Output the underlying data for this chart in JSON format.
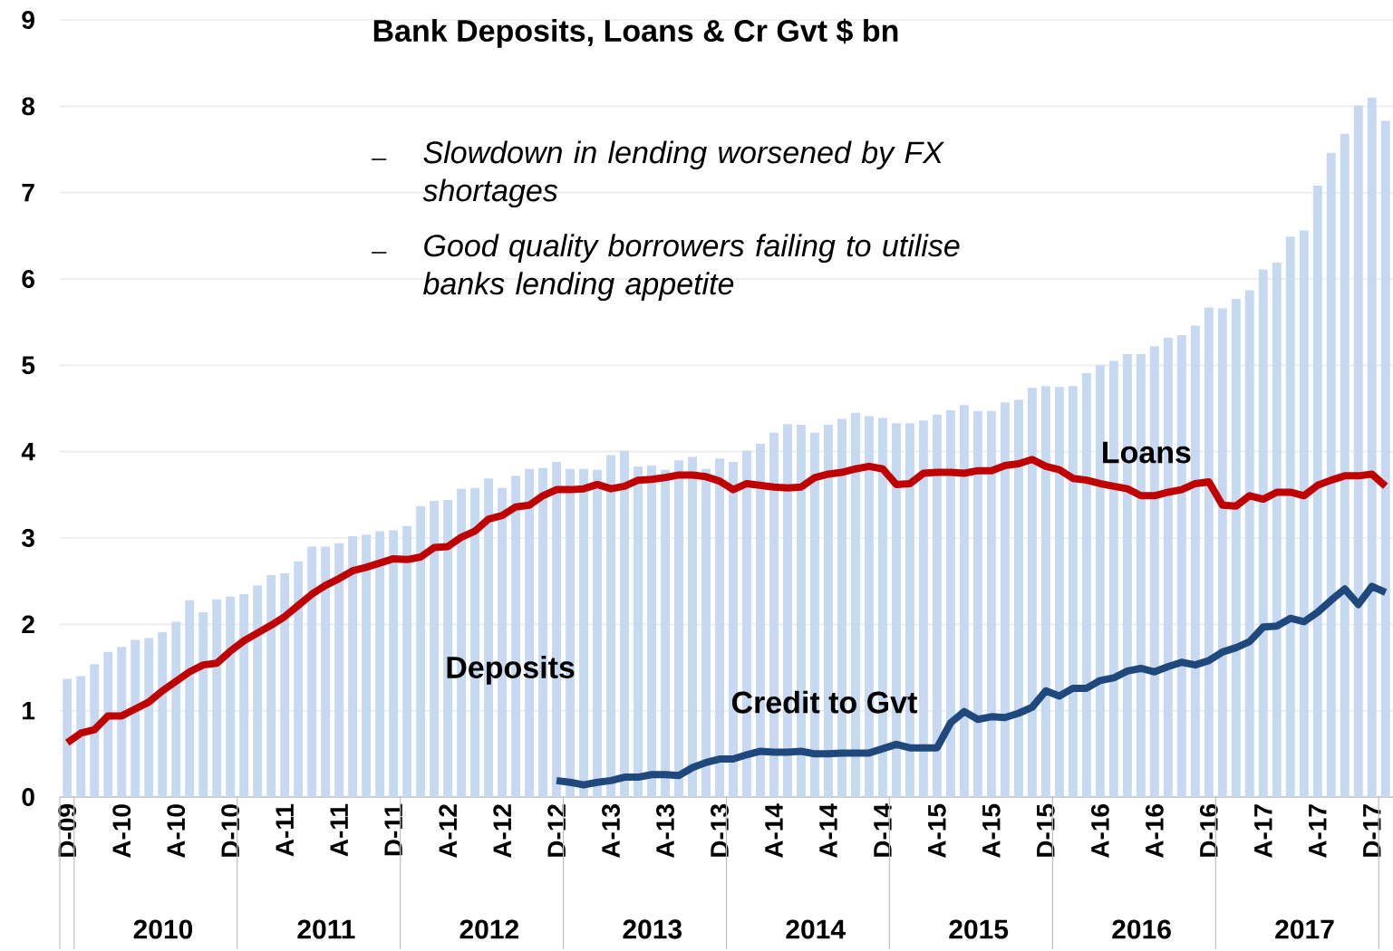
{
  "chart_data": {
    "type": "bar",
    "title": "Bank Deposits, Loans & Cr Gvt $ bn",
    "categories": [
      "D-09",
      null,
      null,
      null,
      "A-10",
      null,
      null,
      null,
      "A-10",
      null,
      null,
      null,
      "D-10",
      null,
      null,
      null,
      "A-11",
      null,
      null,
      null,
      "A-11",
      null,
      null,
      null,
      "D-11",
      null,
      null,
      null,
      "A-12",
      null,
      null,
      null,
      "A-12",
      null,
      null,
      null,
      "D-12",
      null,
      null,
      null,
      "A-13",
      null,
      null,
      null,
      "A-13",
      null,
      null,
      null,
      "D-13",
      null,
      null,
      null,
      "A-14",
      null,
      null,
      null,
      "A-14",
      null,
      null,
      null,
      "D-14",
      null,
      null,
      null,
      "A-15",
      null,
      null,
      null,
      "A-15",
      null,
      null,
      null,
      "D-15",
      null,
      null,
      null,
      "A-16",
      null,
      null,
      null,
      "A-16",
      null,
      null,
      null,
      "D-16",
      null,
      null,
      null,
      "A-17",
      null,
      null,
      null,
      "A-17",
      null,
      null,
      null,
      "D-17",
      null
    ],
    "series": [
      {
        "name": "Deposits",
        "color": "#c6d9f0",
        "values": [
          1.37,
          1.4,
          1.54,
          1.68,
          1.74,
          1.82,
          1.84,
          1.91,
          2.03,
          2.28,
          2.14,
          2.29,
          2.32,
          2.35,
          2.45,
          2.57,
          2.59,
          2.73,
          2.9,
          2.9,
          2.94,
          3.02,
          3.04,
          3.08,
          3.09,
          3.14,
          3.37,
          3.43,
          3.44,
          3.57,
          3.58,
          3.69,
          3.58,
          3.72,
          3.8,
          3.81,
          3.88,
          3.8,
          3.8,
          3.79,
          3.96,
          4.01,
          3.83,
          3.84,
          3.79,
          3.9,
          3.94,
          3.8,
          3.92,
          3.88,
          4.01,
          4.09,
          4.22,
          4.32,
          4.31,
          4.22,
          4.31,
          4.38,
          4.45,
          4.41,
          4.39,
          4.33,
          4.33,
          4.36,
          4.43,
          4.48,
          4.54,
          4.47,
          4.47,
          4.57,
          4.6,
          4.74,
          4.76,
          4.75,
          4.76,
          4.91,
          5.0,
          5.05,
          5.13,
          5.13,
          5.22,
          5.32,
          5.35,
          5.46,
          5.67,
          5.66,
          5.77,
          5.87,
          6.11,
          6.19,
          6.49,
          6.56,
          7.08,
          7.46,
          7.68,
          8.01,
          8.1,
          7.83
        ]
      },
      {
        "name": "Loans",
        "type": "line",
        "color": "#c00000",
        "values": [
          0.63,
          0.74,
          0.78,
          0.94,
          0.94,
          1.02,
          1.1,
          1.23,
          1.34,
          1.45,
          1.53,
          1.55,
          1.69,
          1.81,
          1.9,
          1.99,
          2.09,
          2.22,
          2.35,
          2.45,
          2.53,
          2.62,
          2.66,
          2.71,
          2.76,
          2.75,
          2.78,
          2.89,
          2.9,
          3.01,
          3.08,
          3.22,
          3.26,
          3.36,
          3.38,
          3.49,
          3.56,
          3.56,
          3.57,
          3.62,
          3.57,
          3.6,
          3.67,
          3.68,
          3.7,
          3.73,
          3.73,
          3.71,
          3.66,
          3.56,
          3.63,
          3.61,
          3.59,
          3.58,
          3.59,
          3.7,
          3.74,
          3.76,
          3.8,
          3.83,
          3.8,
          3.62,
          3.63,
          3.75,
          3.76,
          3.76,
          3.75,
          3.78,
          3.78,
          3.84,
          3.86,
          3.91,
          3.83,
          3.79,
          3.69,
          3.67,
          3.63,
          3.6,
          3.57,
          3.49,
          3.49,
          3.53,
          3.56,
          3.63,
          3.65,
          3.38,
          3.37,
          3.49,
          3.45,
          3.53,
          3.53,
          3.49,
          3.61,
          3.67,
          3.72,
          3.72,
          3.74,
          3.6
        ]
      },
      {
        "name": "Credit to Gvt",
        "type": "line",
        "color": "#1f497d",
        "values": [
          null,
          null,
          null,
          null,
          null,
          null,
          null,
          null,
          null,
          null,
          null,
          null,
          null,
          null,
          null,
          null,
          null,
          null,
          null,
          null,
          null,
          null,
          null,
          null,
          null,
          null,
          null,
          null,
          null,
          null,
          null,
          null,
          null,
          null,
          null,
          null,
          0.19,
          0.17,
          0.14,
          0.17,
          0.19,
          0.23,
          0.23,
          0.26,
          0.26,
          0.25,
          0.34,
          0.4,
          0.44,
          0.44,
          0.49,
          0.53,
          0.52,
          0.52,
          0.53,
          0.5,
          0.5,
          0.51,
          0.51,
          0.51,
          0.56,
          0.61,
          0.57,
          0.57,
          0.57,
          0.86,
          0.99,
          0.9,
          0.93,
          0.92,
          0.97,
          1.04,
          1.23,
          1.17,
          1.26,
          1.26,
          1.35,
          1.38,
          1.46,
          1.49,
          1.45,
          1.51,
          1.56,
          1.53,
          1.58,
          1.68,
          1.73,
          1.8,
          1.97,
          1.98,
          2.07,
          2.03,
          2.14,
          2.28,
          2.41,
          2.23,
          2.44,
          2.37
        ]
      }
    ],
    "ylim": [
      0,
      9
    ],
    "yticks": [
      0,
      1,
      2,
      3,
      4,
      5,
      6,
      7,
      8,
      9
    ],
    "grid": "y",
    "legend": false,
    "annotations": [
      "Slowdown in lending worsened by FX shortages",
      "Good quality borrowers failing to utilise banks lending appetite",
      "2010",
      "2011",
      "2012",
      "2013",
      "2014",
      "2015",
      "2016",
      "2017"
    ]
  }
}
